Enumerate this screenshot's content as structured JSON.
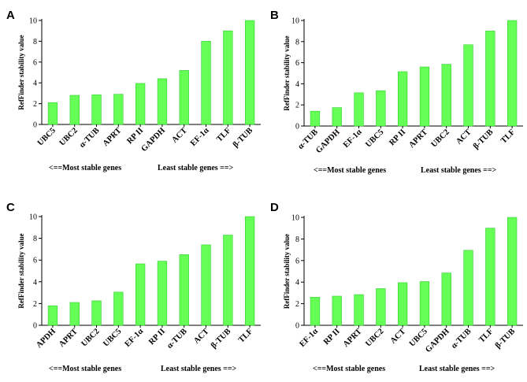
{
  "figure": {
    "bar_color": "#66ff55",
    "bar_edge_color": "#33cc33"
  },
  "chart_data": [
    {
      "type": "bar",
      "panel": "A",
      "ylabel": "RefFinder stability value",
      "ylim": [
        0,
        10
      ],
      "yticks": [
        0,
        2,
        4,
        6,
        8,
        10
      ],
      "categories": [
        "UBC5",
        "UBC2",
        "α-TUB",
        "APRT",
        "RP II",
        "GAPDH",
        "ACT",
        "EF-1α",
        "TLF",
        "β-TUB"
      ],
      "values": [
        2.1,
        2.8,
        2.85,
        2.9,
        3.95,
        4.4,
        5.2,
        8.0,
        9.0,
        10.0
      ],
      "note_left": "<==Most  stable genes",
      "note_right": "Least stable genes ==>"
    },
    {
      "type": "bar",
      "panel": "B",
      "ylabel": "RefFinder stability value",
      "ylim": [
        0,
        10
      ],
      "yticks": [
        0,
        2,
        4,
        6,
        8,
        10
      ],
      "categories": [
        "α-TUB",
        "GAPDH",
        "EF-1α",
        "UBC5",
        "RP II",
        "APRT",
        "UBC2",
        "ACT",
        "β-TUB",
        "TLF"
      ],
      "values": [
        1.4,
        1.75,
        3.15,
        3.35,
        5.15,
        5.6,
        5.85,
        7.7,
        9.0,
        10.0
      ],
      "note_left": "<==Most  stable genes",
      "note_right": "Least stable genes ==>"
    },
    {
      "type": "bar",
      "panel": "C",
      "ylabel": "RefFinder stability value",
      "ylim": [
        0,
        10
      ],
      "yticks": [
        0,
        2,
        4,
        6,
        8,
        10
      ],
      "categories": [
        "APDH",
        "APRT",
        "UBC2",
        "UBC5",
        "EF-1α",
        "RP II",
        "α-TUB",
        "ACT",
        "β-TUB",
        "TLF"
      ],
      "values": [
        1.8,
        2.1,
        2.25,
        3.05,
        5.65,
        5.9,
        6.5,
        7.4,
        8.3,
        10.0
      ],
      "note_left": "<==Most  stable genes",
      "note_right": "Least stable genes ==>"
    },
    {
      "type": "bar",
      "panel": "D",
      "ylabel": "RefFinder stability value",
      "ylim": [
        0,
        10
      ],
      "yticks": [
        0,
        2,
        4,
        6,
        8,
        10
      ],
      "categories": [
        "EF-1α",
        "RP II",
        "APRT",
        "UBC2",
        "ACT",
        "UBC5",
        "GAPDH",
        "α-TUB",
        "TLF",
        "β-TUB"
      ],
      "values": [
        2.6,
        2.7,
        2.85,
        3.4,
        3.95,
        4.05,
        4.85,
        6.95,
        9.0,
        10.0
      ],
      "note_left": "<==Most  stable genes",
      "note_right": "Least stable genes ==>"
    }
  ]
}
